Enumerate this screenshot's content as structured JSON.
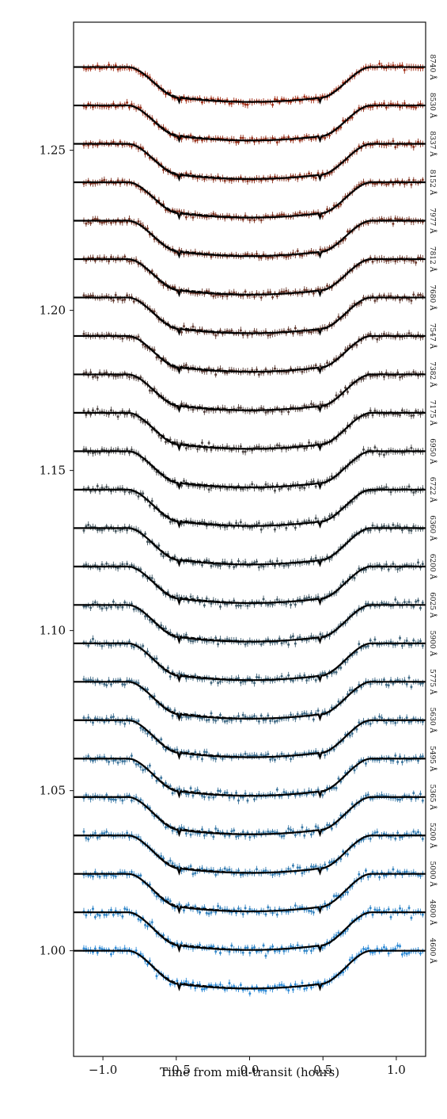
{
  "chart_data": {
    "type": "scatter",
    "title": "",
    "xlabel": "Time from mid-transit (hours)",
    "ylabel": "",
    "xlim": [
      -1.2,
      1.2
    ],
    "ylim": [
      0.967,
      1.29
    ],
    "x_ticks": [
      -1.0,
      -0.5,
      0.0,
      0.5,
      1.0
    ],
    "x_tick_labels": [
      "−1.0",
      "−0.5",
      "0.0",
      "0.5",
      "1.0"
    ],
    "y_ticks": [
      1.0,
      1.05,
      1.1,
      1.15,
      1.2,
      1.25
    ],
    "y_tick_labels": [
      "1.00",
      "1.05",
      "1.10",
      "1.15",
      "1.20",
      "1.25"
    ],
    "grid": false,
    "legend": "none",
    "curve_shape": {
      "t1": 0.83,
      "t2": 0.48,
      "depth": 0.0118,
      "depth_slope": 0.0009
    },
    "series": [
      {
        "wavelength": "4600 Å",
        "offset": 0.0,
        "color": "#2f8bd6"
      },
      {
        "wavelength": "4800 Å",
        "offset": 0.012,
        "color": "#3287c8"
      },
      {
        "wavelength": "5000 Å",
        "offset": 0.024,
        "color": "#3582bd"
      },
      {
        "wavelength": "5200 Å",
        "offset": 0.036,
        "color": "#377eb2"
      },
      {
        "wavelength": "5365 Å",
        "offset": 0.048,
        "color": "#3a79a6"
      },
      {
        "wavelength": "5495 Å",
        "offset": 0.06,
        "color": "#3c749b"
      },
      {
        "wavelength": "5630 Å",
        "offset": 0.072,
        "color": "#3e6f90"
      },
      {
        "wavelength": "5775 Å",
        "offset": 0.084,
        "color": "#406a85"
      },
      {
        "wavelength": "5900 Å",
        "offset": 0.096,
        "color": "#41657a"
      },
      {
        "wavelength": "6025 Å",
        "offset": 0.108,
        "color": "#425f70"
      },
      {
        "wavelength": "6200 Å",
        "offset": 0.12,
        "color": "#435a66"
      },
      {
        "wavelength": "6360 Å",
        "offset": 0.132,
        "color": "#44555d"
      },
      {
        "wavelength": "6722 Å",
        "offset": 0.144,
        "color": "#464f53"
      },
      {
        "wavelength": "6950 Å",
        "offset": 0.156,
        "color": "#48494a"
      },
      {
        "wavelength": "7175 Å",
        "offset": 0.168,
        "color": "#4d4543"
      },
      {
        "wavelength": "7382 Å",
        "offset": 0.18,
        "color": "#53413d"
      },
      {
        "wavelength": "7547 Å",
        "offset": 0.192,
        "color": "#5a3e37"
      },
      {
        "wavelength": "7680 Å",
        "offset": 0.204,
        "color": "#623b32"
      },
      {
        "wavelength": "7812 Å",
        "offset": 0.216,
        "color": "#6b392d"
      },
      {
        "wavelength": "7977 Å",
        "offset": 0.228,
        "color": "#753728"
      },
      {
        "wavelength": "8152 Å",
        "offset": 0.24,
        "color": "#803524"
      },
      {
        "wavelength": "8337 Å",
        "offset": 0.252,
        "color": "#8b3320"
      },
      {
        "wavelength": "8530 Å",
        "offset": 0.264,
        "color": "#96311c"
      },
      {
        "wavelength": "8740 Å",
        "offset": 0.276,
        "color": "#a22f18"
      }
    ]
  }
}
